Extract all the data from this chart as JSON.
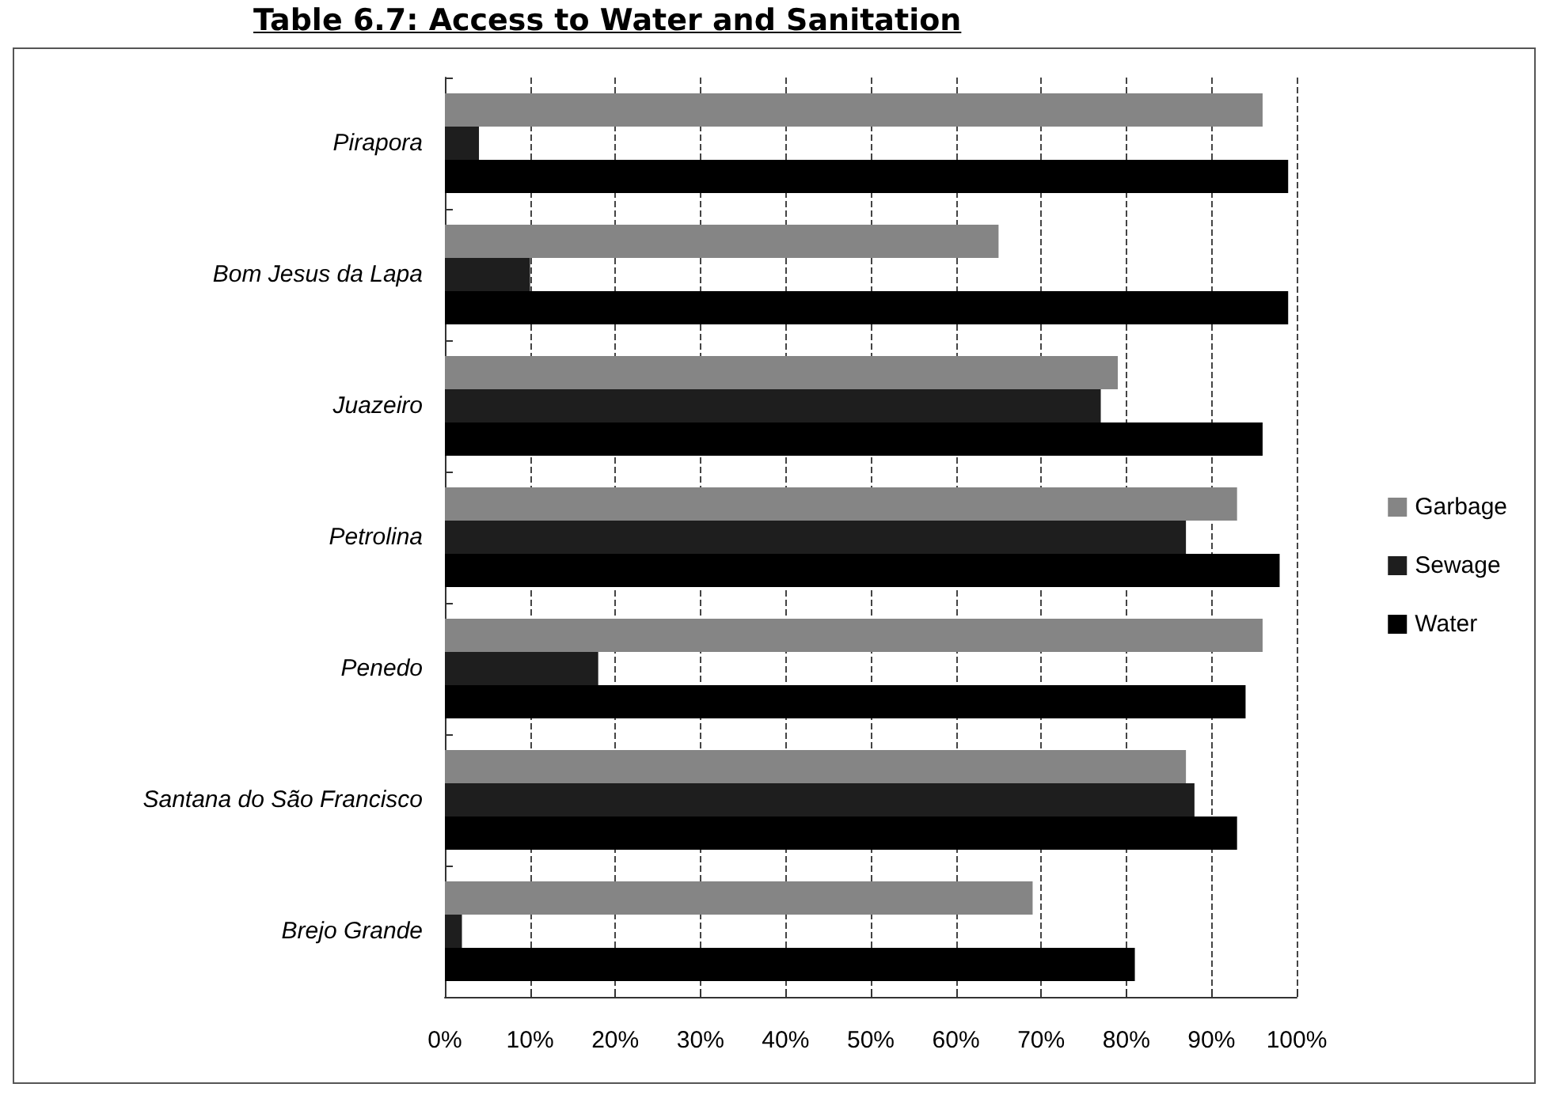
{
  "chart_data": {
    "type": "bar",
    "orientation": "horizontal",
    "title": "Table 6.7: Access to Water and Sanitation",
    "categories": [
      "Pirapora",
      "Bom Jesus da Lapa",
      "Juazeiro",
      "Petrolina",
      "Penedo",
      "Santana do São Francisco",
      "Brejo Grande"
    ],
    "series": [
      {
        "name": "Garbage",
        "color": "#858585",
        "values": [
          96,
          65,
          79,
          93,
          96,
          87,
          69
        ]
      },
      {
        "name": "Sewage",
        "color": "#1e1e1e",
        "values": [
          4,
          10,
          77,
          87,
          18,
          88,
          2
        ]
      },
      {
        "name": "Water",
        "color": "#000000",
        "values": [
          99,
          99,
          96,
          98,
          94,
          93,
          81
        ]
      }
    ],
    "xlim": [
      0,
      100
    ],
    "xticks": [
      {
        "value": 0,
        "label": "0%"
      },
      {
        "value": 10,
        "label": "10%"
      },
      {
        "value": 20,
        "label": "20%"
      },
      {
        "value": 30,
        "label": "30%"
      },
      {
        "value": 40,
        "label": "40%"
      },
      {
        "value": 50,
        "label": "50%"
      },
      {
        "value": 60,
        "label": "60%"
      },
      {
        "value": 70,
        "label": "70%"
      },
      {
        "value": 80,
        "label": "80%"
      },
      {
        "value": 90,
        "label": "90%"
      },
      {
        "value": 100,
        "label": "100%"
      }
    ],
    "grid": "x",
    "legend": "right"
  }
}
